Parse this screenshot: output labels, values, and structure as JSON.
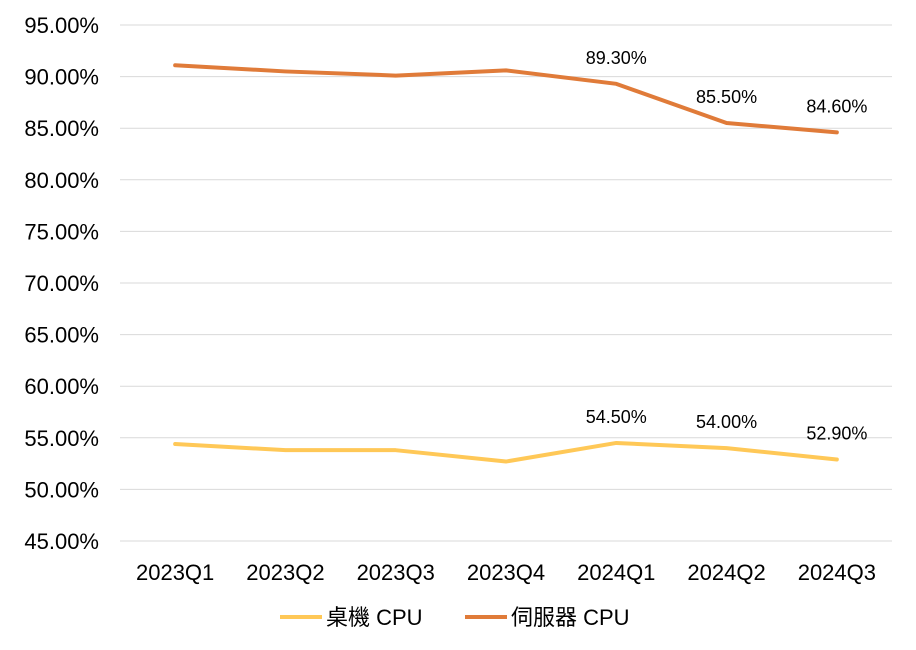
{
  "chart_data": {
    "type": "line",
    "categories": [
      "2023Q1",
      "2023Q2",
      "2023Q3",
      "2023Q4",
      "2024Q1",
      "2024Q2",
      "2024Q3"
    ],
    "y_ticks": [
      "45.00%",
      "50.00%",
      "55.00%",
      "60.00%",
      "65.00%",
      "70.00%",
      "75.00%",
      "80.00%",
      "85.00%",
      "90.00%",
      "95.00%"
    ],
    "ylim": [
      45,
      95
    ],
    "grid": true,
    "legend_position": "bottom",
    "series": [
      {
        "name": "桌機 CPU",
        "color": "#FFC857",
        "values": [
          54.4,
          53.8,
          53.8,
          52.7,
          54.5,
          54.0,
          52.9
        ],
        "labels": [
          "",
          "",
          "",
          "",
          "54.50%",
          "54.00%",
          "52.90%"
        ]
      },
      {
        "name": "伺服器 CPU",
        "color": "#E07B39",
        "values": [
          91.1,
          90.5,
          90.1,
          90.6,
          89.3,
          85.5,
          84.6
        ],
        "labels": [
          "",
          "",
          "",
          "",
          "89.30%",
          "85.50%",
          "84.60%"
        ]
      }
    ]
  }
}
